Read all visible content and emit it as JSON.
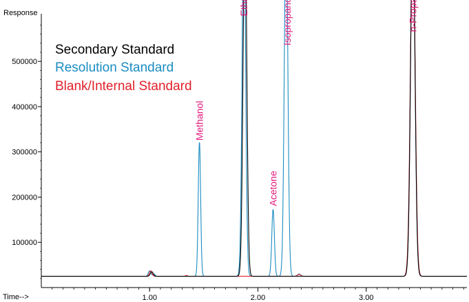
{
  "chart_data": {
    "type": "line",
    "title": "",
    "ylabel": "Response",
    "xlabel": "Time-->",
    "xlim": [
      0.0,
      3.93
    ],
    "ylim": [
      0,
      590000
    ],
    "x_ticks": [
      {
        "value": 1.0,
        "label": "1.00"
      },
      {
        "value": 2.0,
        "label": "2.00"
      },
      {
        "value": 3.0,
        "label": "3.00"
      }
    ],
    "y_ticks": [
      {
        "value": 100000,
        "label": "100000"
      },
      {
        "value": 200000,
        "label": "200000"
      },
      {
        "value": 300000,
        "label": "300000"
      },
      {
        "value": 400000,
        "label": "400000"
      },
      {
        "value": 500000,
        "label": "500000"
      }
    ],
    "baseline": 25000,
    "series": [
      {
        "name": "Secondary Standard",
        "color": "#000000",
        "peaks": [
          {
            "x": 1.02,
            "y": 10000,
            "w": 0.013
          },
          {
            "x": 1.88,
            "y": 800000,
            "w": 0.017
          },
          {
            "x": 3.43,
            "y": 800000,
            "w": 0.02
          }
        ]
      },
      {
        "name": "Resolution Standard",
        "color": "#1a8cc2",
        "peaks": [
          {
            "x": 1.0,
            "y": 12000,
            "w": 0.012
          },
          {
            "x": 1.04,
            "y": 5000,
            "w": 0.01
          },
          {
            "x": 1.46,
            "y": 297000,
            "w": 0.011
          },
          {
            "x": 1.87,
            "y": 800000,
            "w": 0.016
          },
          {
            "x": 2.14,
            "y": 148000,
            "w": 0.012
          },
          {
            "x": 2.26,
            "y": 800000,
            "w": 0.016
          },
          {
            "x": 2.38,
            "y": 5000,
            "w": 0.015
          },
          {
            "x": 3.43,
            "y": 800000,
            "w": 0.02
          }
        ]
      },
      {
        "name": "Blank/Internal Standard",
        "color": "#e0202a",
        "peaks": [
          {
            "x": 1.01,
            "y": 12000,
            "w": 0.012
          },
          {
            "x": 1.34,
            "y": 1500,
            "w": 0.01
          },
          {
            "x": 2.38,
            "y": 4000,
            "w": 0.015
          },
          {
            "x": 3.43,
            "y": 800000,
            "w": 0.021
          }
        ]
      }
    ],
    "annotations": [
      {
        "text": "Methanol",
        "x": 1.46,
        "y": 325000,
        "color": "#e0187a"
      },
      {
        "text": "Ethanol",
        "x": 1.87,
        "y": 600000,
        "color": "#e0187a"
      },
      {
        "text": "Acetone",
        "x": 2.14,
        "y": 180000,
        "color": "#e0187a"
      },
      {
        "text": "Isopropanol",
        "x": 2.27,
        "y": 535000,
        "color": "#e0187a"
      },
      {
        "text": "n-Propanol",
        "x": 3.43,
        "y": 565000,
        "color": "#e0187a"
      }
    ],
    "grid": false,
    "legend_position": "top-left"
  }
}
